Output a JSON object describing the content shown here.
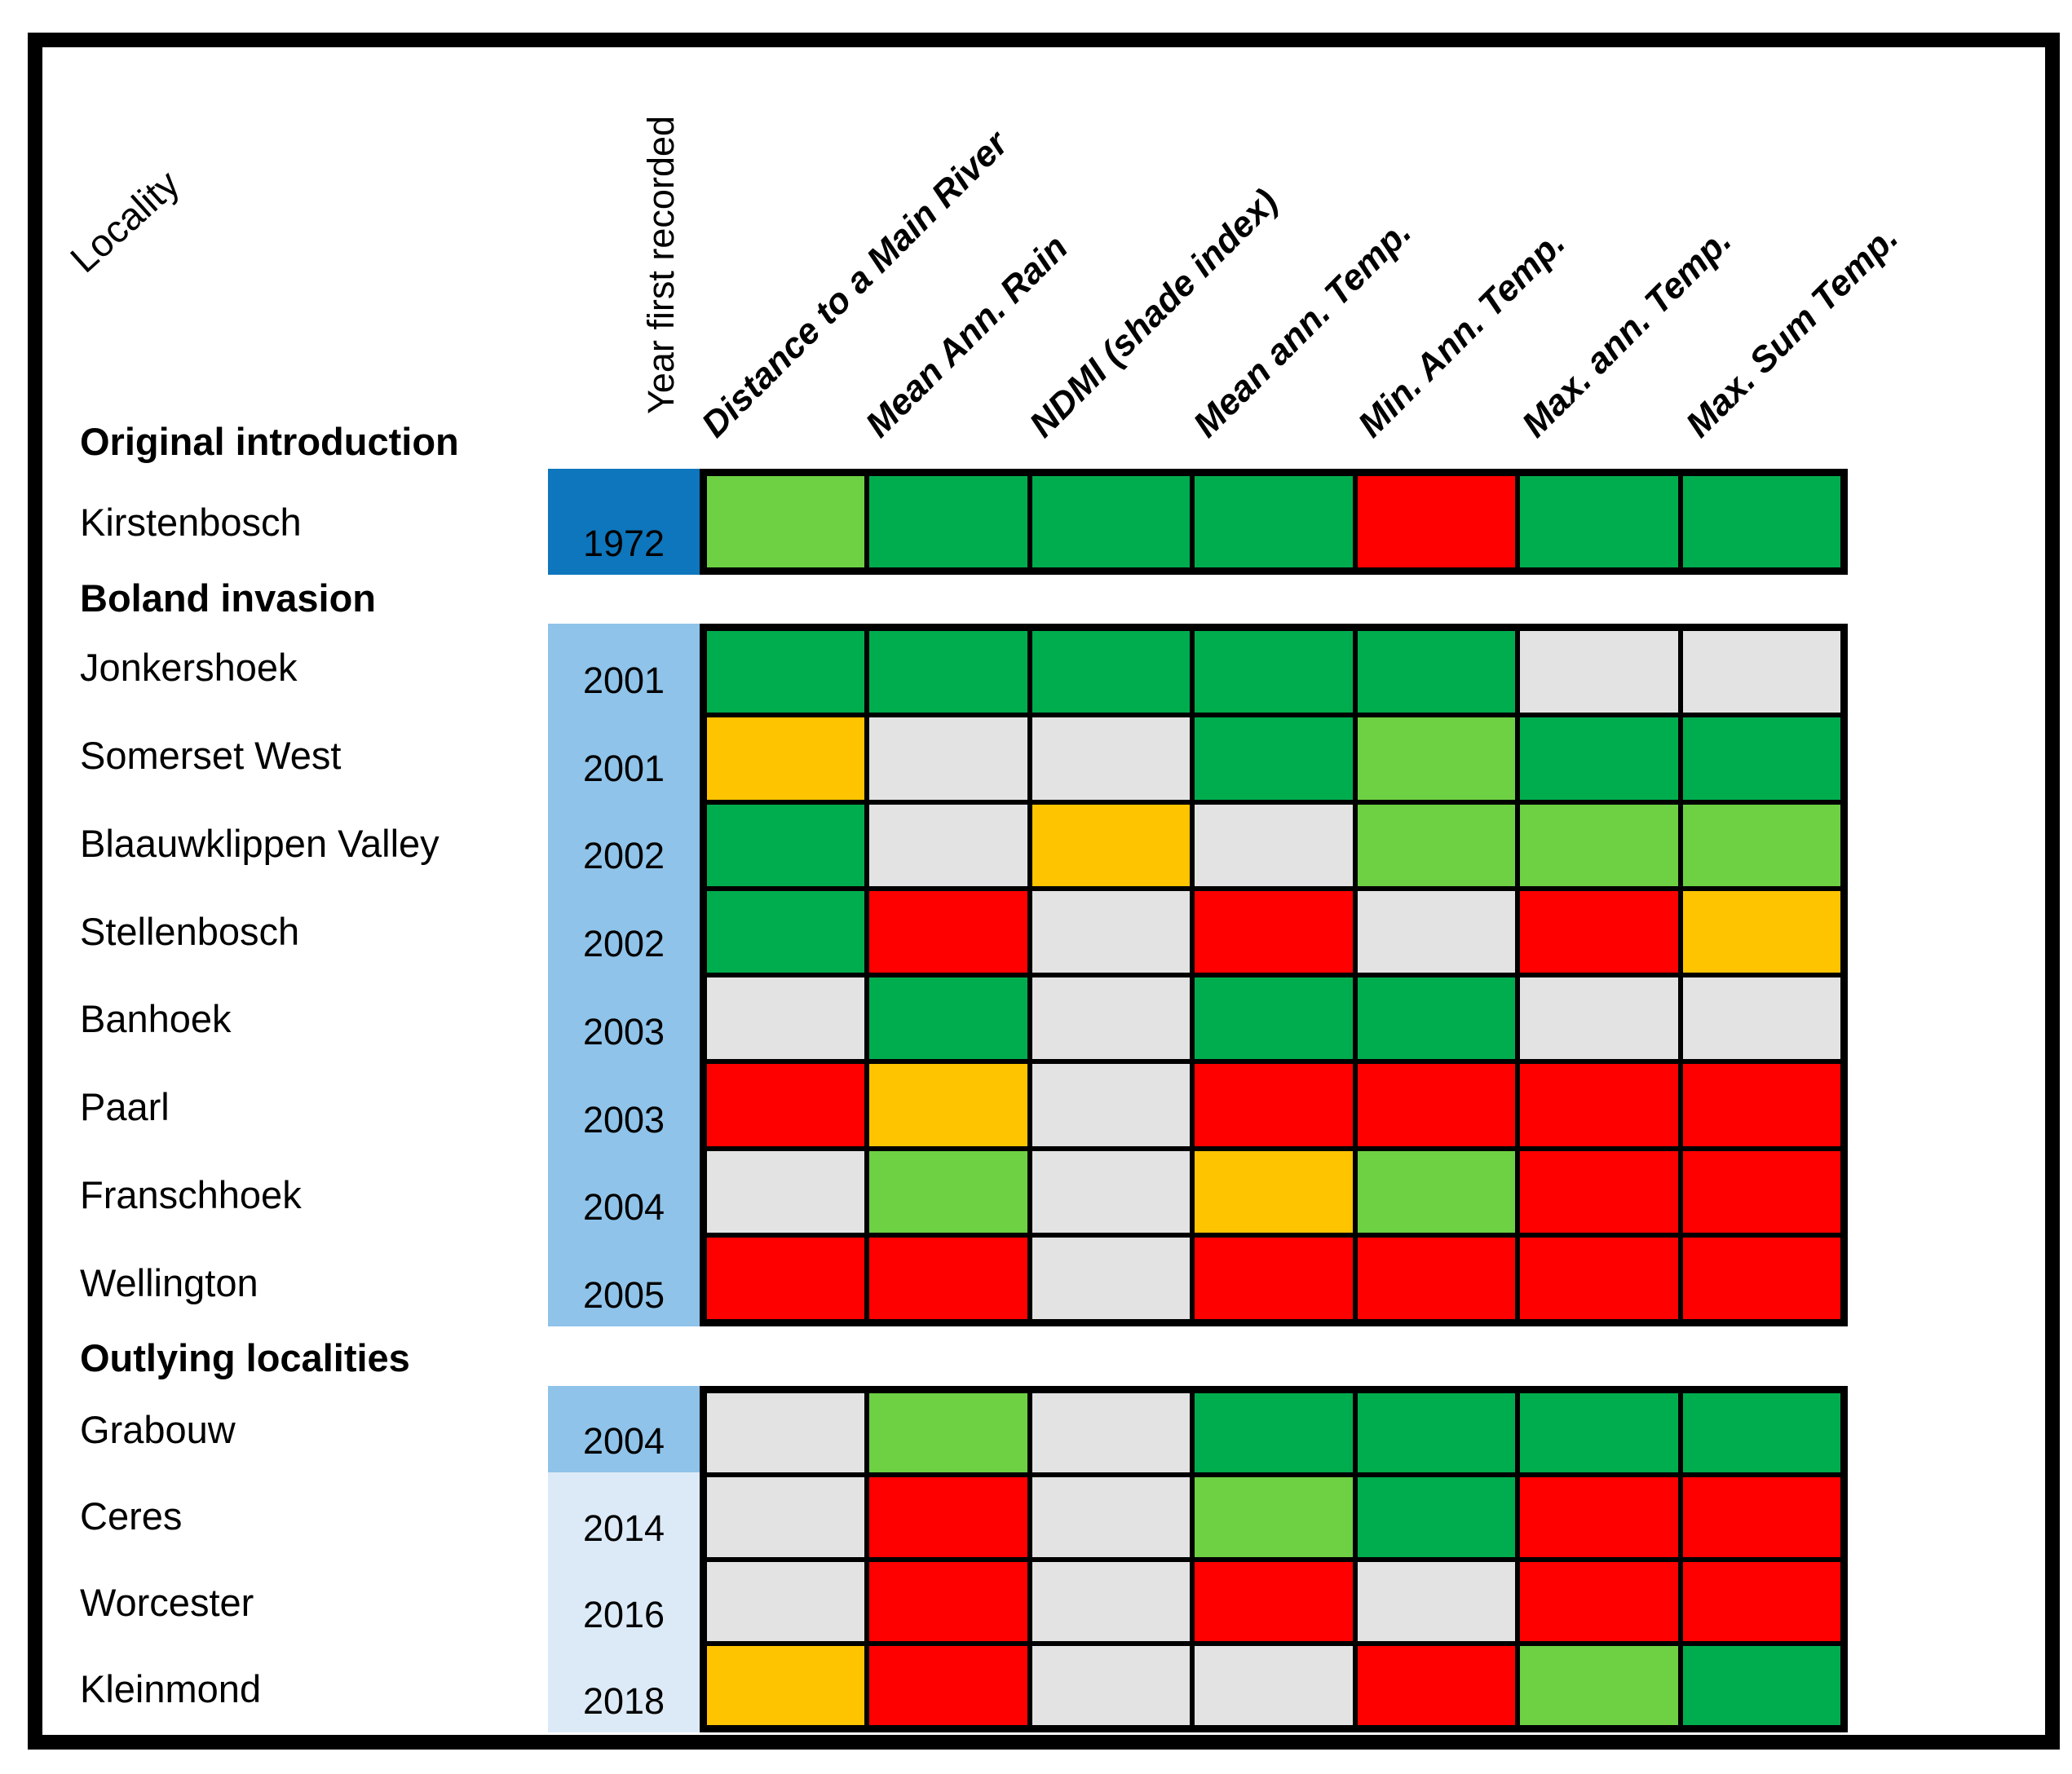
{
  "headers": {
    "locality": "Locality",
    "year": "Year first recorded"
  },
  "colors": {
    "green": "#00AD4E",
    "light_green": "#6DD143",
    "amber": "#FFC400",
    "red": "#FF0000",
    "gray": "#E3E3E3",
    "dark_blue": "#0E76BC",
    "mid_blue": "#8FC3E9",
    "light_blue": "#DCEAF7"
  },
  "chart_data": {
    "type": "heatmap",
    "columns": [
      "Distance to a Main River",
      "Mean Ann. Rain",
      "NDMI (shade index)",
      "Mean ann. Temp.",
      "Min. Ann. Temp.",
      "Max. ann. Temp.",
      "Max. Sum Temp."
    ],
    "row_axis_label": "Locality",
    "year_axis_label": "Year first recorded",
    "cell_value_encoding": "color category per cell",
    "groups": [
      {
        "label": "Original introduction",
        "rows": [
          {
            "locality": "Kirstenbosch",
            "year": "1972",
            "year_color": "dark_blue",
            "cells": [
              "light_green",
              "green",
              "green",
              "green",
              "red",
              "green",
              "green"
            ]
          }
        ]
      },
      {
        "label": "Boland invasion",
        "rows": [
          {
            "locality": "Jonkershoek",
            "year": "2001",
            "year_color": "mid_blue",
            "cells": [
              "green",
              "green",
              "green",
              "green",
              "green",
              "gray",
              "gray"
            ]
          },
          {
            "locality": "Somerset West",
            "year": "2001",
            "year_color": "mid_blue",
            "cells": [
              "amber",
              "gray",
              "gray",
              "green",
              "light_green",
              "green",
              "green"
            ]
          },
          {
            "locality": "Blaauwklippen Valley",
            "year": "2002",
            "year_color": "mid_blue",
            "cells": [
              "green",
              "gray",
              "amber",
              "gray",
              "light_green",
              "light_green",
              "light_green"
            ]
          },
          {
            "locality": "Stellenbosch",
            "year": "2002",
            "year_color": "mid_blue",
            "cells": [
              "green",
              "red",
              "gray",
              "red",
              "gray",
              "red",
              "amber"
            ]
          },
          {
            "locality": "Banhoek",
            "year": "2003",
            "year_color": "mid_blue",
            "cells": [
              "gray",
              "green",
              "gray",
              "green",
              "green",
              "gray",
              "gray"
            ]
          },
          {
            "locality": "Paarl",
            "year": "2003",
            "year_color": "mid_blue",
            "cells": [
              "red",
              "amber",
              "gray",
              "red",
              "red",
              "red",
              "red"
            ]
          },
          {
            "locality": "Franschhoek",
            "year": "2004",
            "year_color": "mid_blue",
            "cells": [
              "gray",
              "light_green",
              "gray",
              "amber",
              "light_green",
              "red",
              "red"
            ]
          },
          {
            "locality": "Wellington",
            "year": "2005",
            "year_color": "mid_blue",
            "cells": [
              "red",
              "red",
              "gray",
              "red",
              "red",
              "red",
              "red"
            ]
          }
        ]
      },
      {
        "label": "Outlying localities",
        "rows": [
          {
            "locality": "Grabouw",
            "year": "2004",
            "year_color": "mid_blue",
            "cells": [
              "gray",
              "light_green",
              "gray",
              "green",
              "green",
              "green",
              "green"
            ]
          },
          {
            "locality": "Ceres",
            "year": "2014",
            "year_color": "light_blue",
            "cells": [
              "gray",
              "red",
              "gray",
              "light_green",
              "green",
              "red",
              "red"
            ]
          },
          {
            "locality": "Worcester",
            "year": "2016",
            "year_color": "light_blue",
            "cells": [
              "gray",
              "red",
              "gray",
              "red",
              "gray",
              "red",
              "red"
            ]
          },
          {
            "locality": "Kleinmond",
            "year": "2018",
            "year_color": "light_blue",
            "cells": [
              "amber",
              "red",
              "gray",
              "gray",
              "red",
              "light_green",
              "green"
            ]
          }
        ]
      }
    ]
  }
}
